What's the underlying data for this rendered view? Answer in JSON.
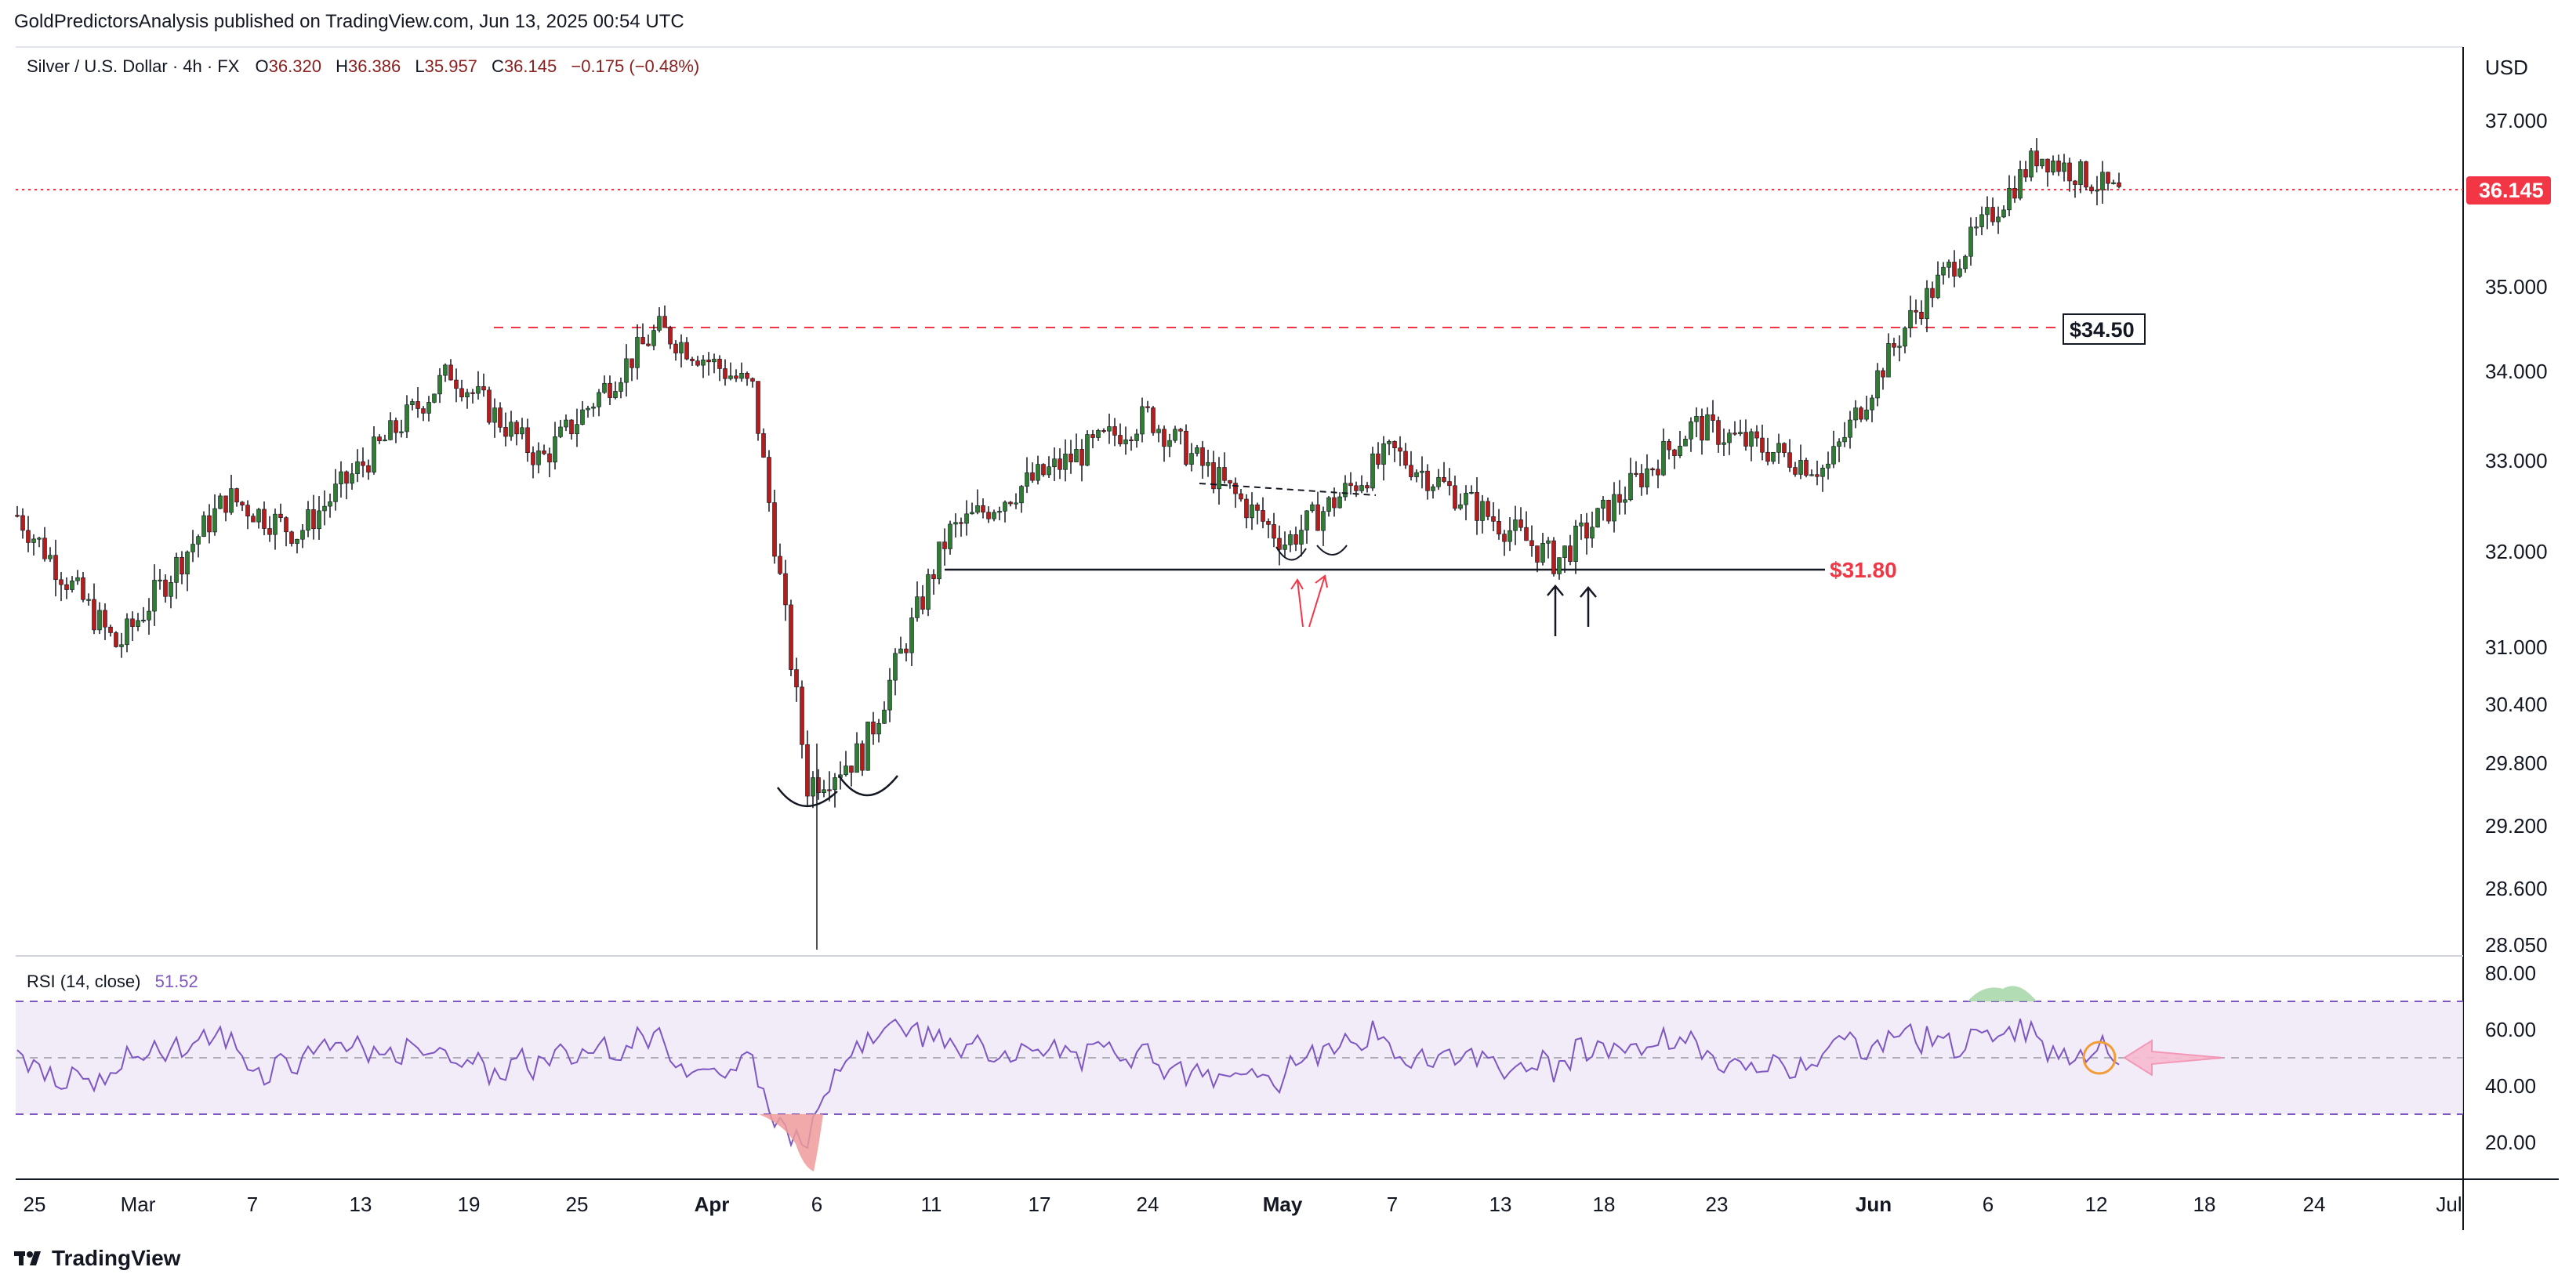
{
  "attribution": "GoldPredictorsAnalysis published on TradingView.com, Jun 13, 2025 00:54 UTC",
  "legend": {
    "symbol": "Silver / U.S. Dollar · 4h · FX",
    "open_label": "O",
    "open": "36.320",
    "high_label": "H",
    "high": "36.386",
    "low_label": "L",
    "low": "35.957",
    "close_label": "C",
    "close": "36.145",
    "change": "−0.175 (−0.48%)"
  },
  "currency": "USD",
  "last_price": "36.145",
  "annotations": {
    "resistance": "$34.50",
    "support": "$31.80"
  },
  "rsi": {
    "label": "RSI (14, close)",
    "value": "51.52",
    "upper": 70,
    "lower": 30,
    "mid": 50
  },
  "brand": "TradingView",
  "colors": {
    "up": "#26a69a",
    "down": "#ef5350",
    "green": "#2e7d32",
    "red_candle": "#b71c1c",
    "rsi_line": "#7e57c2",
    "rsi_band": "#ede7f6",
    "annotation_red": "#f23645"
  },
  "chart_data": {
    "type": "candlestick",
    "price_axis_ticks": [
      "37.000",
      "35.000",
      "34.000",
      "33.000",
      "32.000",
      "31.000",
      "30.400",
      "29.800",
      "29.200",
      "28.600",
      "28.050"
    ],
    "rsi_axis_ticks": [
      "80.00",
      "60.00",
      "40.00",
      "20.00"
    ],
    "x_ticks": [
      "25",
      "Mar",
      "7",
      "13",
      "19",
      "25",
      "Apr",
      "6",
      "11",
      "17",
      "24",
      "May",
      "7",
      "13",
      "18",
      "23",
      "Jun",
      "6",
      "12",
      "18",
      "24",
      "Jul"
    ],
    "key_points": [
      {
        "date": "Feb 24",
        "price": 32.4
      },
      {
        "date": "Feb 28",
        "price": 31.0
      },
      {
        "date": "Mar 6",
        "price": 32.6
      },
      {
        "date": "Mar 10",
        "price": 32.2
      },
      {
        "date": "Mar 18",
        "price": 34.0
      },
      {
        "date": "Mar 24",
        "price": 33.0
      },
      {
        "date": "Mar 28",
        "price": 34.5
      },
      {
        "date": "Apr 3",
        "price": 33.8
      },
      {
        "date": "Apr 6",
        "price": 29.6
      },
      {
        "date": "Apr 9",
        "price": 29.9
      },
      {
        "date": "Apr 14",
        "price": 32.2
      },
      {
        "date": "Apr 18",
        "price": 32.7
      },
      {
        "date": "Apr 24",
        "price": 33.5
      },
      {
        "date": "May 1",
        "price": 32.1
      },
      {
        "date": "May 7",
        "price": 33.1
      },
      {
        "date": "May 15",
        "price": 31.9
      },
      {
        "date": "May 22",
        "price": 33.4
      },
      {
        "date": "May 29",
        "price": 32.9
      },
      {
        "date": "Jun 3",
        "price": 34.6
      },
      {
        "date": "Jun 5",
        "price": 35.5
      },
      {
        "date": "Jun 9",
        "price": 36.6
      },
      {
        "date": "Jun 12",
        "price": 36.1
      }
    ],
    "horizontal_levels": [
      {
        "label": "$34.50",
        "value": 34.5,
        "style": "dashed"
      },
      {
        "label": "$31.80",
        "value": 31.8,
        "style": "solid"
      },
      {
        "value": 36.145,
        "style": "dotted"
      }
    ]
  }
}
